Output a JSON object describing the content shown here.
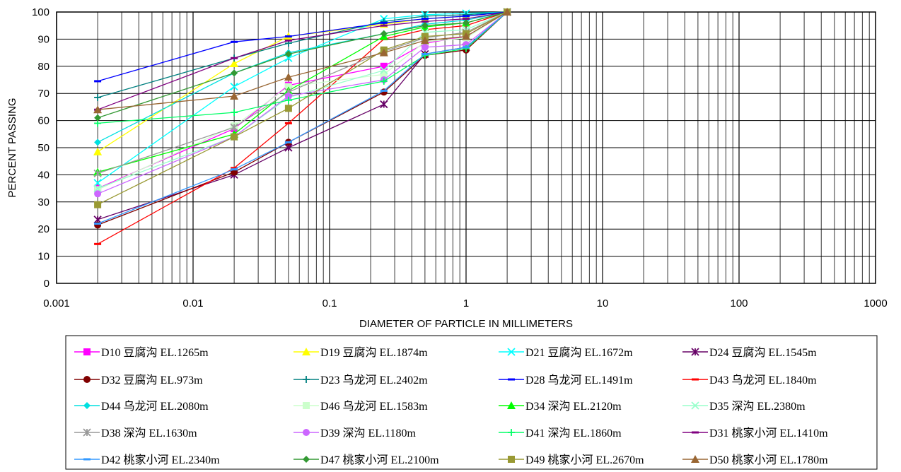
{
  "chart_data": {
    "type": "line",
    "xlabel": "DIAMETER OF PARTICLE IN MILLIMETERS",
    "ylabel": "PERCENT PASSING",
    "xscale": "log",
    "xlim": [
      0.001,
      1000
    ],
    "ylim": [
      0,
      100
    ],
    "x_tick_labels": [
      "0.001",
      "0.01",
      "0.1",
      "1",
      "10",
      "100",
      "1000"
    ],
    "y_tick_labels": [
      "0",
      "10",
      "20",
      "30",
      "40",
      "50",
      "60",
      "70",
      "80",
      "90",
      "100"
    ],
    "grid": true,
    "legend_position": "bottom",
    "x": [
      0.002,
      0.02,
      0.05,
      0.25,
      0.5,
      1,
      2
    ],
    "series": [
      {
        "name": "D10 豆腐沟 EL.1265m",
        "color": "#ff00ff",
        "marker": "square",
        "values": [
          35,
          57,
          73,
          80,
          88.5,
          91,
          100
        ]
      },
      {
        "name": "D19 豆腐沟 EL.1874m",
        "color": "#ffff00",
        "marker": "triangle",
        "values": [
          48.5,
          81,
          91,
          95.5,
          97.5,
          98.5,
          100
        ]
      },
      {
        "name": "D21 豆腐沟 EL.1672m",
        "color": "#00ffff",
        "marker": "x",
        "values": [
          37,
          72.5,
          83,
          97.5,
          99,
          99.5,
          100
        ]
      },
      {
        "name": "D24 豆腐沟 EL.1545m",
        "color": "#660066",
        "marker": "star",
        "values": [
          23.5,
          40,
          50,
          66,
          84.5,
          87,
          100
        ]
      },
      {
        "name": "D32 豆腐沟 EL.973m",
        "color": "#800000",
        "marker": "circle",
        "values": [
          21.5,
          41,
          52,
          70.5,
          84,
          86,
          100
        ]
      },
      {
        "name": "D23 乌龙河 EL.2402m",
        "color": "#008080",
        "marker": "plus",
        "values": [
          68.5,
          83,
          88.5,
          96.5,
          98.5,
          99,
          100
        ]
      },
      {
        "name": "D28 乌龙河 EL.1491m",
        "color": "#0000ff",
        "marker": "dash",
        "values": [
          74.5,
          89,
          91,
          96,
          97.5,
          98.5,
          100
        ]
      },
      {
        "name": "D43 乌龙河 EL.1840m",
        "color": "#ff0000",
        "marker": "dash",
        "values": [
          14.5,
          42.5,
          59,
          90,
          93.5,
          95,
          100
        ]
      },
      {
        "name": "D44 乌龙河 EL.2080m",
        "color": "#00e0e0",
        "marker": "diamond",
        "values": [
          52,
          77.5,
          85,
          92,
          95.5,
          97,
          100
        ]
      },
      {
        "name": "D46 乌龙河 EL.1583m",
        "color": "#ccffcc",
        "marker": "square",
        "values": [
          34.5,
          58,
          72.5,
          77,
          89,
          90.5,
          100
        ]
      },
      {
        "name": "D34 深沟 EL.2120m",
        "color": "#00ff00",
        "marker": "triangle",
        "values": [
          41,
          55,
          71,
          91,
          94.5,
          96,
          100
        ]
      },
      {
        "name": "D35 深沟 EL.2380m",
        "color": "#99ffcc",
        "marker": "x",
        "values": [
          35,
          54,
          68.5,
          78.5,
          92.5,
          93.5,
          100
        ]
      },
      {
        "name": "D38 深沟 EL.1630m",
        "color": "#999999",
        "marker": "star",
        "values": [
          40.5,
          57.5,
          70.5,
          85.5,
          90.5,
          92.5,
          100
        ]
      },
      {
        "name": "D39 深沟 EL.1180m",
        "color": "#cc66ff",
        "marker": "circle",
        "values": [
          33,
          54,
          69,
          75,
          87,
          88,
          100
        ]
      },
      {
        "name": "D41 深沟 EL.1860m",
        "color": "#00ff66",
        "marker": "plus",
        "values": [
          59,
          63,
          67.5,
          74.5,
          84,
          86.5,
          100
        ]
      },
      {
        "name": "D31 桃家小河 EL.1410m",
        "color": "#800080",
        "marker": "dash",
        "values": [
          64,
          83,
          89.5,
          95,
          96.5,
          97.5,
          100
        ]
      },
      {
        "name": "D42 桃家小河 EL.2340m",
        "color": "#3399ff",
        "marker": "dash",
        "values": [
          22,
          42,
          52,
          71,
          84.5,
          87,
          100
        ]
      },
      {
        "name": "D47 桃家小河 EL.2100m",
        "color": "#339933",
        "marker": "diamond",
        "values": [
          61,
          77.5,
          84.5,
          92,
          95,
          96,
          100
        ]
      },
      {
        "name": "D49 桃家小河 EL.2670m",
        "color": "#999933",
        "marker": "square",
        "values": [
          29,
          54,
          64.5,
          86,
          91,
          92,
          100
        ]
      },
      {
        "name": "D50 桃家小河 EL.1780m",
        "color": "#996633",
        "marker": "triangle",
        "values": [
          64,
          69,
          76,
          85,
          89.5,
          91,
          100
        ]
      }
    ]
  }
}
